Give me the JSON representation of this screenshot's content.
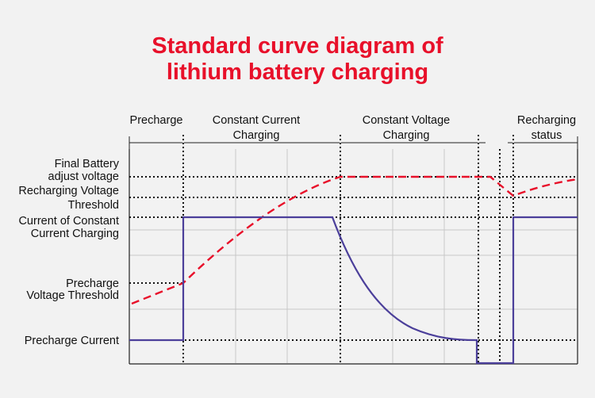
{
  "title": {
    "line1": "Standard curve diagram of",
    "line2": "lithium battery charging"
  },
  "colors": {
    "background": "#f2f2f2",
    "title": "#e8102a",
    "voltage_curve": "#e8102a",
    "current_curve": "#4b3f9a",
    "grid": "#c8c8c8",
    "axis": "#222222"
  },
  "phases": {
    "precharge": "Precharge",
    "constant_current_line1": "Constant Current",
    "constant_current_line2": "Charging",
    "constant_voltage_line1": "Constant Voltage",
    "constant_voltage_line2": "Charging",
    "recharging_line1": "Recharging",
    "recharging_line2": "status"
  },
  "levels": {
    "final_voltage_line1": "Final Battery",
    "final_voltage_line2": "adjust voltage",
    "recharge_threshold_line1": "Recharging Voltage",
    "recharge_threshold_line2": "Threshold",
    "cc_current_line1": "Current of Constant",
    "cc_current_line2": "Current Charging",
    "precharge_threshold_line1": "Precharge",
    "precharge_threshold_line2": "Voltage Threshold",
    "precharge_current": "Precharge Current"
  }
}
